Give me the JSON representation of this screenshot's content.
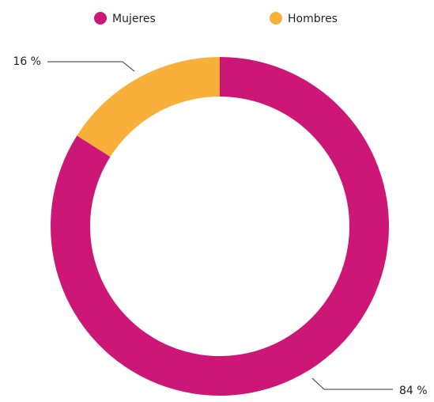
{
  "chart_data": {
    "type": "donut",
    "categories": [
      "Mujeres",
      "Hombres"
    ],
    "values": [
      84,
      16
    ],
    "value_labels": [
      "84 %",
      "16 %"
    ],
    "colors": [
      "#cc1776",
      "#f9b03a"
    ],
    "legend": "top"
  }
}
